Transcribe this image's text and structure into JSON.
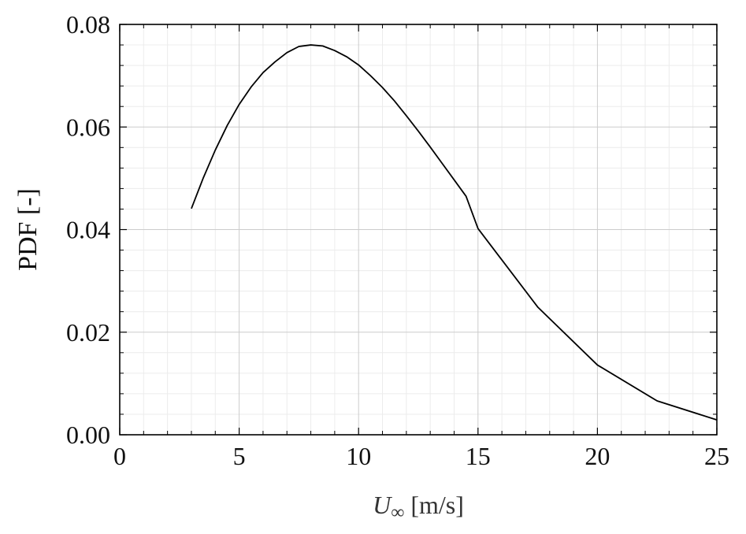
{
  "chart_data": {
    "type": "line",
    "title": "",
    "xlabel_var": "U",
    "xlabel_sub": "∞",
    "xlabel_unit": " [m/s]",
    "ylabel": "PDF [-]",
    "xlim": [
      0,
      25
    ],
    "ylim": [
      0,
      0.08
    ],
    "x_ticks": [
      0,
      5,
      10,
      15,
      20,
      25
    ],
    "x_tick_labels": [
      "0",
      "5",
      "10",
      "15",
      "20",
      "25"
    ],
    "y_ticks": [
      0,
      0.02,
      0.04,
      0.06,
      0.08
    ],
    "y_tick_labels": [
      "0.00",
      "0.02",
      "0.04",
      "0.06",
      "0.08"
    ],
    "grid": true,
    "minor_grid": true,
    "colors": {
      "line": "#000000",
      "major_grid": "#cccccc",
      "minor_grid": "#ececec",
      "frame": "#000000"
    },
    "series": [
      {
        "x": [
          3,
          3.5,
          4,
          4.5,
          5,
          5.5,
          6,
          6.5,
          7,
          7.5,
          8,
          8.5,
          9,
          9.5,
          10,
          10.5,
          11,
          11.5,
          12,
          12.5,
          13,
          13.5,
          14,
          14.5,
          15,
          17.5,
          20,
          22.5,
          25
        ],
        "y": [
          0.0441,
          0.0501,
          0.0555,
          0.0603,
          0.0644,
          0.0678,
          0.0706,
          0.0727,
          0.0745,
          0.0757,
          0.076,
          0.0758,
          0.0749,
          0.0737,
          0.0721,
          0.07,
          0.0677,
          0.0651,
          0.0622,
          0.0592,
          0.0561,
          0.0529,
          0.0497,
          0.0465,
          0.0402,
          0.0249,
          0.0136,
          0.0066,
          0.0029
        ]
      }
    ]
  }
}
